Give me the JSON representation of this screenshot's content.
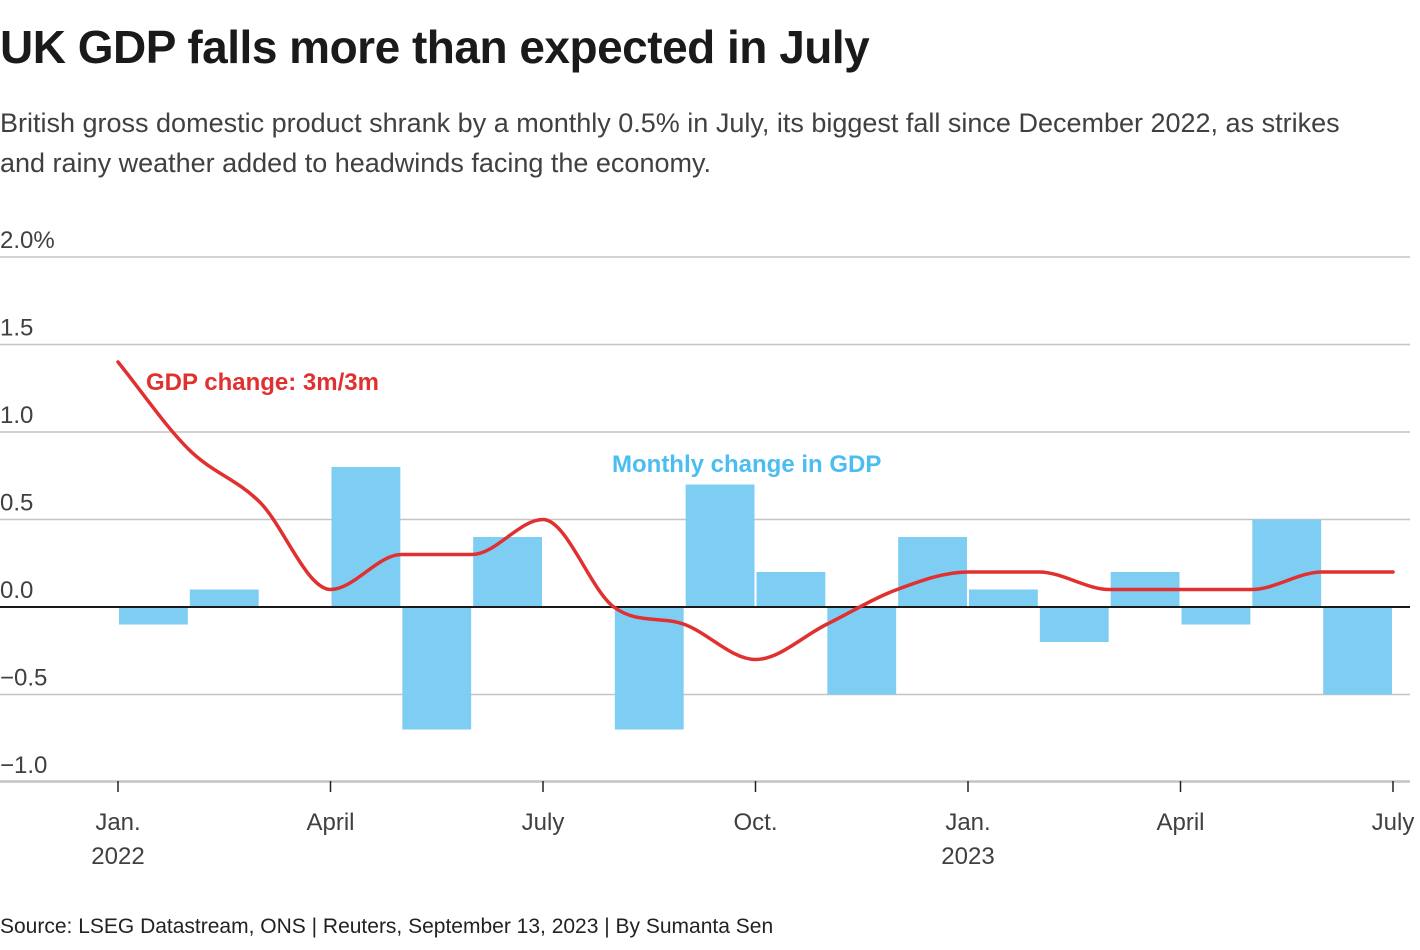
{
  "title": "UK GDP falls more than expected in July",
  "subtitle": "British gross domestic product shrank by a monthly 0.5% in July, its biggest fall since December 2022, as strikes and rainy weather added to headwinds facing the economy.",
  "source": "Source: LSEG Datastream, ONS | Reuters, September 13, 2023 | By Sumanta Sen",
  "chart_data": {
    "type": "bar+line",
    "ylim": [
      -1.0,
      2.0
    ],
    "yticks": [
      {
        "value": 2.0,
        "label": "2.0%"
      },
      {
        "value": 1.5,
        "label": "1.5"
      },
      {
        "value": 1.0,
        "label": "1.0"
      },
      {
        "value": 0.5,
        "label": "0.5"
      },
      {
        "value": 0.0,
        "label": "0.0"
      },
      {
        "value": -0.5,
        "label": "−0.5"
      },
      {
        "value": -1.0,
        "label": "−1.0"
      }
    ],
    "grid": true,
    "months": [
      "2022-01",
      "2022-02",
      "2022-03",
      "2022-04",
      "2022-05",
      "2022-06",
      "2022-07",
      "2022-08",
      "2022-09",
      "2022-10",
      "2022-11",
      "2022-12",
      "2023-01",
      "2023-02",
      "2023-03",
      "2023-04",
      "2023-05",
      "2023-06",
      "2023-07"
    ],
    "xticks": [
      {
        "month": "2022-01",
        "label": "Jan.",
        "sub": "2022"
      },
      {
        "month": "2022-04",
        "label": "April",
        "sub": ""
      },
      {
        "month": "2022-07",
        "label": "July",
        "sub": ""
      },
      {
        "month": "2022-10",
        "label": "Oct.",
        "sub": ""
      },
      {
        "month": "2023-01",
        "label": "Jan.",
        "sub": "2023"
      },
      {
        "month": "2023-04",
        "label": "April",
        "sub": ""
      },
      {
        "month": "2023-07",
        "label": "July",
        "sub": ""
      }
    ],
    "series": [
      {
        "name": "Monthly change in GDP",
        "type": "bar",
        "color": "#7ecef4",
        "months": [
          "2022-02",
          "2022-03",
          "2022-04",
          "2022-05",
          "2022-06",
          "2022-07",
          "2022-08",
          "2022-09",
          "2022-10",
          "2022-11",
          "2022-12",
          "2023-01",
          "2023-02",
          "2023-03",
          "2023-04",
          "2023-05",
          "2023-06",
          "2023-07"
        ],
        "values": [
          -0.1,
          0.1,
          0.0,
          0.8,
          -0.7,
          0.4,
          0.0,
          -0.7,
          0.7,
          0.2,
          -0.5,
          0.4,
          0.1,
          -0.2,
          0.2,
          -0.1,
          0.5,
          -0.5
        ]
      },
      {
        "name": "GDP change: 3m/3m",
        "type": "line",
        "color": "#e03030",
        "months": [
          "2022-01",
          "2022-02",
          "2022-03",
          "2022-04",
          "2022-05",
          "2022-06",
          "2022-07",
          "2022-08",
          "2022-09",
          "2022-10",
          "2022-11",
          "2022-12",
          "2023-01",
          "2023-02",
          "2023-03",
          "2023-04",
          "2023-05",
          "2023-06",
          "2023-07"
        ],
        "values": [
          1.4,
          0.9,
          0.6,
          0.1,
          0.3,
          0.3,
          0.5,
          0.0,
          -0.1,
          -0.3,
          -0.1,
          0.1,
          0.2,
          0.2,
          0.1,
          0.1,
          0.1,
          0.2,
          0.2
        ]
      }
    ],
    "series_label_color_bar": "#4bbdf0"
  }
}
